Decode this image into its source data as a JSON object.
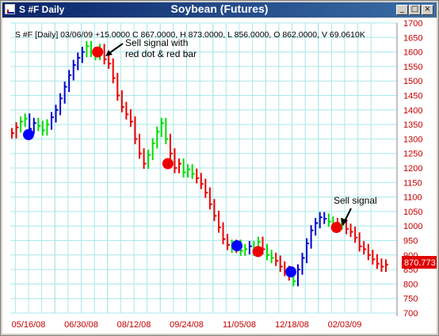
{
  "window": {
    "title_left": "S #F Daily",
    "title_center": "Soybean (Futures)",
    "buttons": {
      "minimize": "_",
      "maximize": "□",
      "close": "×"
    }
  },
  "header_text": "S #F [Daily] 03/06/09  +15.0000 C 867.0000, H 873.0000, L 856.0000, O 862.0000, V 69.0610K",
  "chart_data": {
    "type": "ohlc",
    "symbol": "S #F",
    "x_ticks": [
      "05/16/08",
      "06/30/08",
      "08/12/08",
      "09/24/08",
      "11/05/08",
      "12/18/08",
      "02/03/09"
    ],
    "y_ticks": [
      700,
      750,
      800,
      850,
      900,
      950,
      1000,
      1050,
      1100,
      1150,
      1200,
      1250,
      1300,
      1350,
      1400,
      1450,
      1500,
      1550,
      1600,
      1650,
      1700
    ],
    "ylim": [
      700,
      1700
    ],
    "last_price_label": "870.773",
    "last_price": 870.773,
    "grid": true,
    "colors": {
      "up_trend": "#0000cc",
      "down_trend": "#ee0000",
      "neutral": "#00dd00",
      "grid": "#a8e8e8",
      "axis_labels": "#c00000"
    },
    "closes": [
      1320,
      1340,
      1360,
      1370,
      1335,
      1355,
      1345,
      1330,
      1350,
      1375,
      1400,
      1440,
      1480,
      1520,
      1555,
      1580,
      1600,
      1620,
      1600,
      1590,
      1610,
      1575,
      1560,
      1510,
      1450,
      1410,
      1385,
      1360,
      1300,
      1250,
      1215,
      1245,
      1285,
      1325,
      1355,
      1300,
      1250,
      1200,
      1215,
      1185,
      1195,
      1180,
      1165,
      1145,
      1115,
      1075,
      1035,
      995,
      955,
      935,
      925,
      935,
      915,
      920,
      930,
      915,
      945,
      920,
      900,
      890,
      880,
      860,
      845,
      830,
      810,
      850,
      890,
      940,
      985,
      1010,
      1030,
      1025,
      1015,
      1000,
      1010,
      1005,
      990,
      980,
      960,
      930,
      920,
      900,
      885,
      870,
      860,
      867
    ],
    "trend_colors": [
      "r",
      "r",
      "g",
      "g",
      "b",
      "b",
      "g",
      "g",
      "g",
      "b",
      "b",
      "b",
      "b",
      "b",
      "b",
      "b",
      "b",
      "g",
      "g",
      "g",
      "g",
      "r",
      "r",
      "r",
      "r",
      "r",
      "r",
      "r",
      "r",
      "r",
      "r",
      "g",
      "g",
      "g",
      "g",
      "g",
      "r",
      "r",
      "r",
      "g",
      "g",
      "g",
      "r",
      "r",
      "r",
      "r",
      "r",
      "r",
      "r",
      "r",
      "g",
      "r",
      "g",
      "g",
      "b",
      "g",
      "g",
      "r",
      "g",
      "g",
      "r",
      "r",
      "r",
      "r",
      "g",
      "b",
      "b",
      "b",
      "b",
      "b",
      "b",
      "b",
      "g",
      "g",
      "r",
      "g",
      "r",
      "r",
      "r",
      "r",
      "r",
      "r",
      "r",
      "r",
      "r",
      "r"
    ],
    "signals": [
      {
        "type": "buy",
        "date": "05/16/08",
        "price": 1315,
        "color": "#0000ff"
      },
      {
        "type": "sell",
        "date": "07/14/08",
        "price": 1600,
        "color": "#ee0000"
      },
      {
        "type": "sell",
        "date": "09/12/08",
        "price": 1215,
        "color": "#ee0000"
      },
      {
        "type": "buy",
        "date": "11/10/08",
        "price": 932,
        "color": "#0000ff"
      },
      {
        "type": "sell",
        "date": "11/28/08",
        "price": 912,
        "color": "#ee0000"
      },
      {
        "type": "buy",
        "date": "12/26/08",
        "price": 842,
        "color": "#0000ff"
      },
      {
        "type": "sell",
        "date": "02/03/09",
        "price": 995,
        "color": "#ee0000"
      }
    ],
    "annotations": [
      {
        "lines": [
          "Sell signal with",
          "red dot & red bar"
        ]
      },
      {
        "lines": [
          "Sell signal"
        ]
      }
    ]
  }
}
